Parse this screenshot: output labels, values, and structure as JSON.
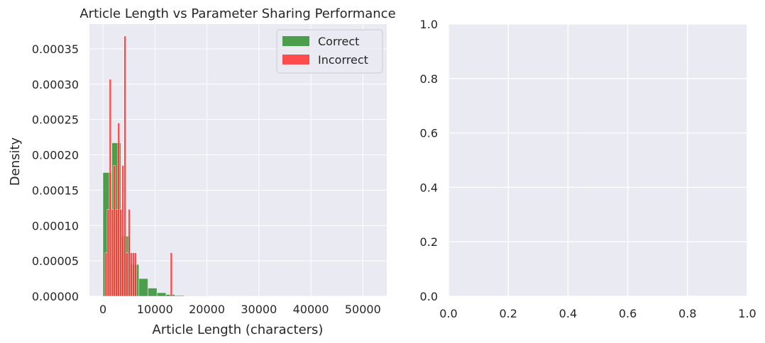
{
  "chart_data": [
    {
      "type": "histogram",
      "title": "Article Length vs Parameter Sharing Performance",
      "xlabel": "Article Length (characters)",
      "ylabel": "Density",
      "xlim": [
        -2600,
        54600
      ],
      "ylim": [
        0,
        0.000385
      ],
      "xticks": [
        0,
        10000,
        20000,
        30000,
        40000,
        50000
      ],
      "xtick_labels": [
        "0",
        "10000",
        "20000",
        "30000",
        "40000",
        "50000"
      ],
      "yticks": [
        0,
        5e-05,
        0.0001,
        0.00015,
        0.0002,
        0.00025,
        0.0003,
        0.00035
      ],
      "ytick_labels": [
        "0.00000",
        "0.00005",
        "0.00010",
        "0.00015",
        "0.00020",
        "0.00025",
        "0.00030",
        "0.00035"
      ],
      "grid": true,
      "legend": {
        "position": "upper right",
        "entries": [
          "Correct",
          "Incorrect"
        ]
      },
      "series": [
        {
          "name": "Correct",
          "color": "#228b22",
          "alpha": 0.8,
          "bin_edges": [
            0,
            1732,
            3464,
            5196,
            6928,
            8660,
            10392,
            12124,
            13856,
            15588,
            17320,
            19052,
            20784,
            22516,
            24248,
            25980,
            27712,
            29444,
            31176,
            32908,
            34640,
            36372,
            38104,
            39836,
            41568,
            43300,
            45032,
            46764,
            48496,
            50228,
            51960
          ],
          "values": [
            0.000175,
            0.000217,
            8.5e-05,
            4.5e-05,
            2.5e-05,
            1.15e-05,
            5e-06,
            2.5e-06,
            1.2e-06,
            6e-07,
            4e-07,
            3e-07,
            2e-07,
            2e-07,
            1e-07,
            1e-07,
            1e-07,
            1e-07,
            1e-07,
            1e-07,
            1e-07,
            1e-07,
            1e-07,
            1e-07,
            1e-07,
            1e-07,
            1e-07,
            1e-07,
            1e-07,
            0
          ]
        },
        {
          "name": "Incorrect",
          "color": "#ff3030",
          "alpha": 0.85,
          "bin_edges": [
            400,
            805,
            1210,
            1615,
            2020,
            2425,
            2830,
            3235,
            3640,
            4045,
            4450,
            4855,
            5260,
            5665,
            6070,
            6475,
            6880,
            7285,
            7690,
            8095,
            8500,
            8905,
            9310,
            9715,
            10120,
            10525,
            10930,
            11335,
            11740,
            12145,
            12550,
            12955,
            13360
          ],
          "values": [
            6.15e-05,
            0.000123,
            0.000307,
            0.000123,
            0.000185,
            0.000123,
            0.000245,
            0.000123,
            0.000185,
            0.000368,
            6.15e-05,
            0.000123,
            6.15e-05,
            6.15e-05,
            6.15e-05,
            0,
            0,
            0,
            0,
            0,
            0,
            0,
            0,
            0,
            0,
            0,
            0,
            0,
            0,
            0,
            0,
            6.15e-05
          ]
        }
      ]
    },
    {
      "type": "empty",
      "xlim": [
        0,
        1
      ],
      "ylim": [
        0,
        1
      ],
      "xticks": [
        0,
        0.2,
        0.4,
        0.6,
        0.8,
        1.0
      ],
      "xtick_labels": [
        "0.0",
        "0.2",
        "0.4",
        "0.6",
        "0.8",
        "1.0"
      ],
      "yticks": [
        0,
        0.2,
        0.4,
        0.6,
        0.8,
        1.0
      ],
      "ytick_labels": [
        "0.0",
        "0.2",
        "0.4",
        "0.6",
        "0.8",
        "1.0"
      ],
      "grid": true
    }
  ]
}
